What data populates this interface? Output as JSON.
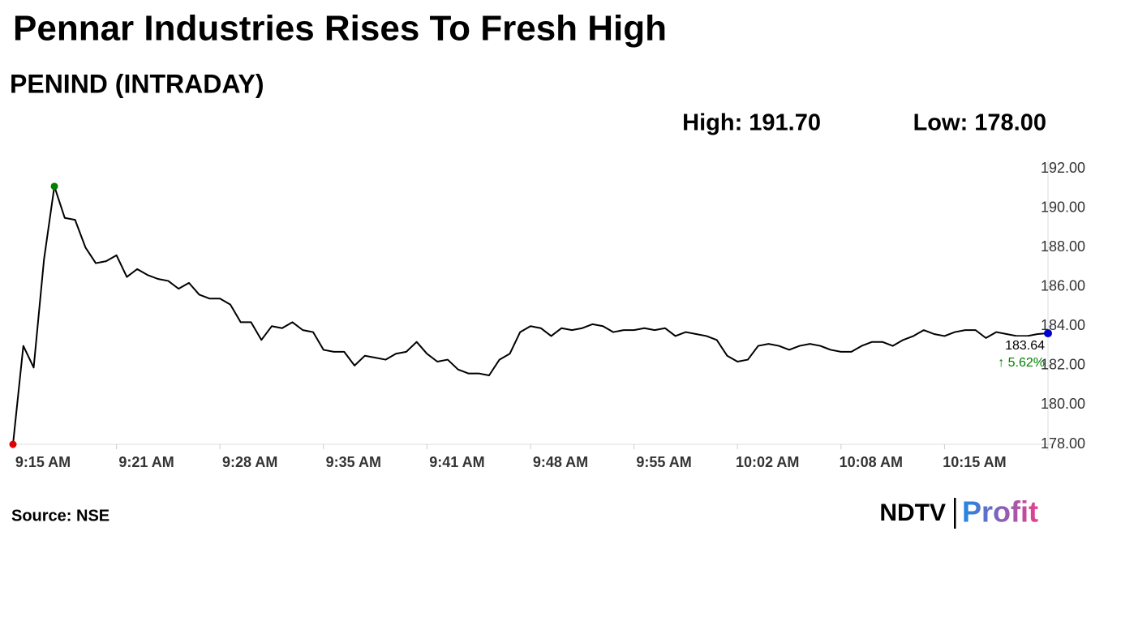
{
  "chart_data": {
    "type": "line",
    "title": "Pennar Industries Rises To Fresh High",
    "subtitle": "PENIND (INTRADAY)",
    "annotations": {
      "high": "High: 191.70",
      "low": "Low: 178.00",
      "last": "183.64",
      "change": "↑ 5.62%"
    },
    "source": "Source: NSE",
    "categories": [
      "9:15 AM",
      null,
      null,
      null,
      null,
      null,
      null,
      null,
      null,
      null,
      "9:21 AM",
      null,
      null,
      null,
      null,
      null,
      null,
      null,
      null,
      null,
      "9:28 AM",
      null,
      null,
      null,
      null,
      null,
      null,
      null,
      null,
      null,
      "9:35 AM",
      null,
      null,
      null,
      null,
      null,
      null,
      null,
      null,
      null,
      "9:41 AM",
      null,
      null,
      null,
      null,
      null,
      null,
      null,
      null,
      null,
      "9:48 AM",
      null,
      null,
      null,
      null,
      null,
      null,
      null,
      null,
      null,
      "9:55 AM",
      null,
      null,
      null,
      null,
      null,
      null,
      null,
      null,
      null,
      "10:02 AM",
      null,
      null,
      null,
      null,
      null,
      null,
      null,
      null,
      null,
      "10:08 AM",
      null,
      null,
      null,
      null,
      null,
      null,
      null,
      null,
      null,
      "10:15 AM",
      null,
      null,
      null,
      null,
      null,
      null,
      null,
      null,
      null,
      null
    ],
    "series": [
      {
        "name": "PENIND",
        "color": "#000000",
        "values": [
          178.0,
          183.0,
          181.9,
          187.4,
          191.1,
          189.5,
          189.4,
          188.0,
          187.2,
          187.3,
          187.6,
          186.5,
          186.9,
          186.6,
          186.4,
          186.3,
          185.9,
          186.2,
          185.6,
          185.4,
          185.4,
          185.1,
          184.2,
          184.2,
          183.3,
          184.0,
          183.9,
          184.2,
          183.8,
          183.7,
          182.8,
          182.7,
          182.7,
          182.0,
          182.5,
          182.4,
          182.3,
          182.6,
          182.7,
          183.2,
          182.6,
          182.2,
          182.3,
          181.8,
          181.6,
          181.6,
          181.5,
          182.3,
          182.6,
          183.7,
          184.0,
          183.9,
          183.5,
          183.9,
          183.8,
          183.9,
          184.1,
          184.0,
          183.7,
          183.8,
          183.8,
          183.9,
          183.8,
          183.9,
          183.5,
          183.7,
          183.6,
          183.5,
          183.3,
          182.5,
          182.2,
          182.3,
          183.0,
          183.1,
          183.0,
          182.8,
          183.0,
          183.1,
          183.0,
          182.8,
          182.7,
          182.7,
          183.0,
          183.2,
          183.2,
          183.0,
          183.3,
          183.5,
          183.8,
          183.6,
          183.5,
          183.7,
          183.8,
          183.8,
          183.4,
          183.7,
          183.6,
          183.5,
          183.5,
          183.6,
          183.64
        ]
      }
    ],
    "markers": {
      "low": "#e00000",
      "high": "#008000",
      "last": "#0000cc"
    },
    "change_color": "#008000",
    "ylim": [
      178,
      192
    ],
    "yticks": [
      {
        "value": 178,
        "label": "178.00"
      },
      {
        "value": 180,
        "label": "180.00"
      },
      {
        "value": 182,
        "label": "182.00"
      },
      {
        "value": 184,
        "label": "184.00"
      },
      {
        "value": 186,
        "label": "186.00"
      },
      {
        "value": 188,
        "label": "188.00"
      },
      {
        "value": 190,
        "label": "190.00"
      },
      {
        "value": 192,
        "label": "192.00"
      }
    ],
    "grid": false
  },
  "logo": {
    "brand": "NDTV",
    "product": "Profit"
  }
}
